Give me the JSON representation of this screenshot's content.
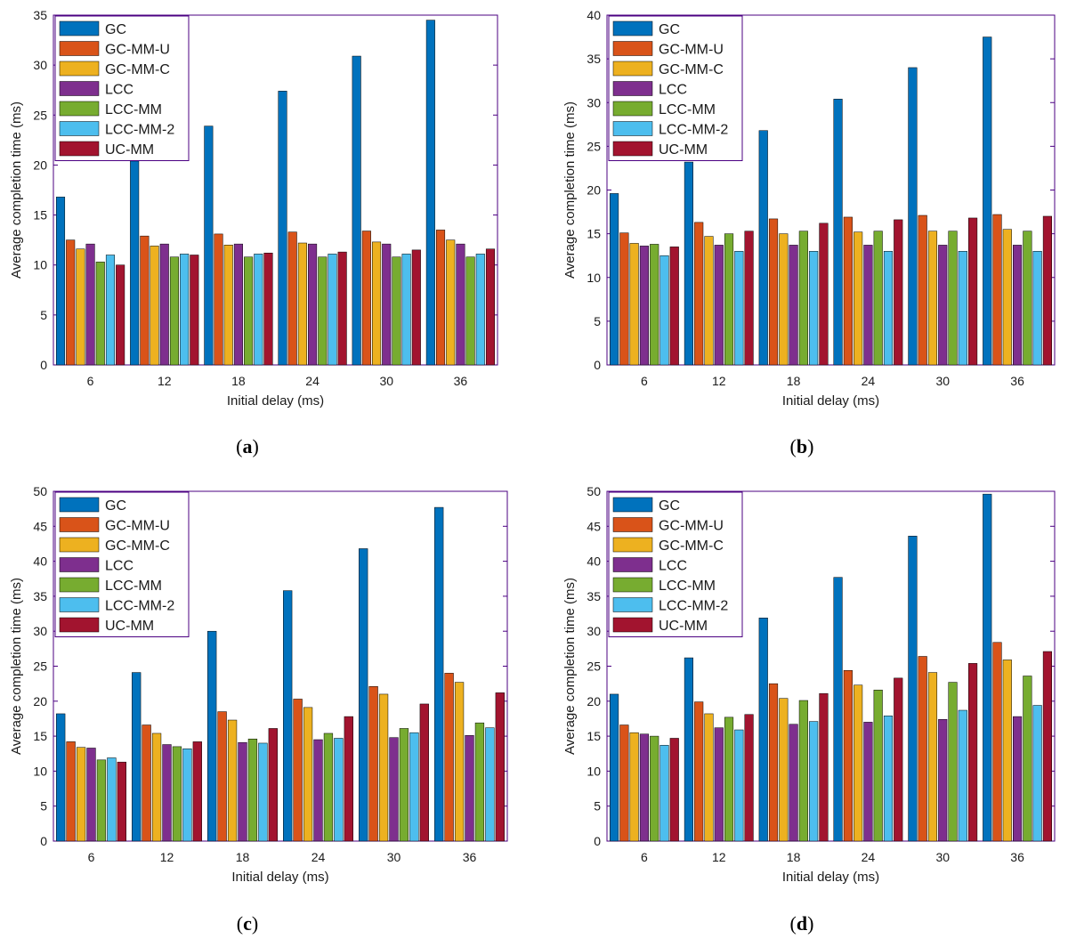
{
  "colors": {
    "GC": "#0072BD",
    "GC-MM-U": "#D95319",
    "GC-MM-C": "#EDB120",
    "LCC": "#7E2F8E",
    "LCC-MM": "#77AC30",
    "LCC-MM-2": "#4DBEEE",
    "UC-MM": "#A2142F",
    "axis": "#4B0082",
    "text": "#1A1A1A"
  },
  "chart_data": [
    {
      "type": "bar",
      "panel": "a",
      "panel_label": "a",
      "xlabel": "Initial delay (ms)",
      "ylabel": "Average completion time (ms)",
      "ylim": [
        0,
        35
      ],
      "yticks": [
        0,
        5,
        10,
        15,
        20,
        25,
        30,
        35
      ],
      "categories": [
        "6",
        "12",
        "18",
        "24",
        "30",
        "36"
      ],
      "legend_position": "top-left",
      "series": [
        {
          "name": "GC",
          "values": [
            16.8,
            20.4,
            23.9,
            27.4,
            30.9,
            34.5
          ]
        },
        {
          "name": "GC-MM-U",
          "values": [
            12.5,
            12.9,
            13.1,
            13.3,
            13.4,
            13.5
          ]
        },
        {
          "name": "GC-MM-C",
          "values": [
            11.6,
            11.9,
            12.0,
            12.2,
            12.3,
            12.5
          ]
        },
        {
          "name": "LCC",
          "values": [
            12.1,
            12.1,
            12.1,
            12.1,
            12.1,
            12.1
          ]
        },
        {
          "name": "LCC-MM",
          "values": [
            10.3,
            10.8,
            10.8,
            10.8,
            10.8,
            10.8
          ]
        },
        {
          "name": "LCC-MM-2",
          "values": [
            11.0,
            11.1,
            11.1,
            11.1,
            11.1,
            11.1
          ]
        },
        {
          "name": "UC-MM",
          "values": [
            10.0,
            11.0,
            11.2,
            11.3,
            11.5,
            11.6
          ]
        }
      ]
    },
    {
      "type": "bar",
      "panel": "b",
      "panel_label": "b",
      "xlabel": "Initial delay (ms)",
      "ylabel": "Average completion time (ms)",
      "ylim": [
        0,
        40
      ],
      "yticks": [
        0,
        5,
        10,
        15,
        20,
        25,
        30,
        35,
        40
      ],
      "categories": [
        "6",
        "12",
        "18",
        "24",
        "30",
        "36"
      ],
      "legend_position": "top-left",
      "series": [
        {
          "name": "GC",
          "values": [
            19.6,
            23.2,
            26.8,
            30.4,
            34.0,
            37.5
          ]
        },
        {
          "name": "GC-MM-U",
          "values": [
            15.1,
            16.3,
            16.7,
            16.9,
            17.1,
            17.2
          ]
        },
        {
          "name": "GC-MM-C",
          "values": [
            13.9,
            14.7,
            15.0,
            15.2,
            15.3,
            15.5
          ]
        },
        {
          "name": "LCC",
          "values": [
            13.6,
            13.7,
            13.7,
            13.7,
            13.7,
            13.7
          ]
        },
        {
          "name": "LCC-MM",
          "values": [
            13.8,
            15.0,
            15.3,
            15.3,
            15.3,
            15.3
          ]
        },
        {
          "name": "LCC-MM-2",
          "values": [
            12.5,
            13.0,
            13.0,
            13.0,
            13.0,
            13.0
          ]
        },
        {
          "name": "UC-MM",
          "values": [
            13.5,
            15.3,
            16.2,
            16.6,
            16.8,
            17.0
          ]
        }
      ]
    },
    {
      "type": "bar",
      "panel": "c",
      "panel_label": "c",
      "xlabel": "Initial delay (ms)",
      "ylabel": "Average completion time (ms)",
      "ylim": [
        0,
        50
      ],
      "yticks": [
        0,
        5,
        10,
        15,
        20,
        25,
        30,
        35,
        40,
        45,
        50
      ],
      "categories": [
        "6",
        "12",
        "18",
        "24",
        "30",
        "36"
      ],
      "legend_position": "top-left",
      "series": [
        {
          "name": "GC",
          "values": [
            18.2,
            24.1,
            30.0,
            35.8,
            41.8,
            47.7
          ]
        },
        {
          "name": "GC-MM-U",
          "values": [
            14.2,
            16.6,
            18.5,
            20.3,
            22.1,
            24.0
          ]
        },
        {
          "name": "GC-MM-C",
          "values": [
            13.4,
            15.4,
            17.3,
            19.1,
            21.0,
            22.7
          ]
        },
        {
          "name": "LCC",
          "values": [
            13.3,
            13.8,
            14.1,
            14.5,
            14.8,
            15.1
          ]
        },
        {
          "name": "LCC-MM",
          "values": [
            11.6,
            13.5,
            14.6,
            15.4,
            16.1,
            16.9
          ]
        },
        {
          "name": "LCC-MM-2",
          "values": [
            11.9,
            13.2,
            14.0,
            14.7,
            15.5,
            16.2
          ]
        },
        {
          "name": "UC-MM",
          "values": [
            11.3,
            14.2,
            16.1,
            17.8,
            19.6,
            21.2
          ]
        }
      ]
    },
    {
      "type": "bar",
      "panel": "d",
      "panel_label": "d",
      "xlabel": "Initial delay (ms)",
      "ylabel": "Average completion time (ms)",
      "ylim": [
        0,
        50
      ],
      "yticks": [
        0,
        5,
        10,
        15,
        20,
        25,
        30,
        35,
        40,
        45,
        50
      ],
      "categories": [
        "6",
        "12",
        "18",
        "24",
        "30",
        "36"
      ],
      "legend_position": "top-left",
      "series": [
        {
          "name": "GC",
          "values": [
            21.0,
            26.2,
            31.9,
            37.7,
            43.6,
            49.6
          ]
        },
        {
          "name": "GC-MM-U",
          "values": [
            16.6,
            19.9,
            22.5,
            24.4,
            26.4,
            28.4
          ]
        },
        {
          "name": "GC-MM-C",
          "values": [
            15.5,
            18.2,
            20.4,
            22.3,
            24.1,
            25.9
          ]
        },
        {
          "name": "LCC",
          "values": [
            15.3,
            16.2,
            16.7,
            17.0,
            17.4,
            17.8
          ]
        },
        {
          "name": "LCC-MM",
          "values": [
            15.0,
            17.7,
            20.1,
            21.6,
            22.7,
            23.6
          ]
        },
        {
          "name": "LCC-MM-2",
          "values": [
            13.7,
            15.9,
            17.1,
            17.9,
            18.7,
            19.4
          ]
        },
        {
          "name": "UC-MM",
          "values": [
            14.7,
            18.1,
            21.1,
            23.3,
            25.4,
            27.1
          ]
        }
      ]
    }
  ]
}
